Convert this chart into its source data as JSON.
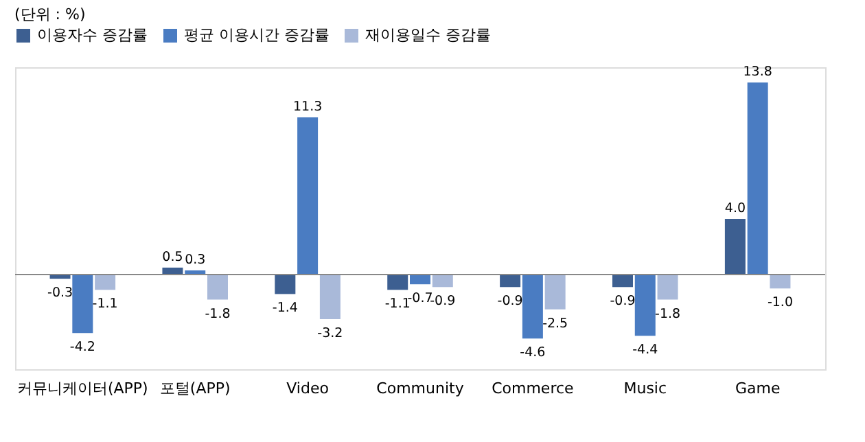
{
  "chart_data": {
    "type": "bar",
    "annotations": [
      "(단위 : %)"
    ],
    "categories": [
      "커뮤니케이터(APP)",
      "포털(APP)",
      "Video",
      "Community",
      "Commerce",
      "Music",
      "Game"
    ],
    "series": [
      {
        "name": "이용자수 증감률",
        "color": "#3d5f91",
        "values": [
          -0.3,
          0.5,
          -1.4,
          -1.1,
          -0.9,
          -0.9,
          4.0
        ],
        "value_labels": [
          "-0.3",
          "0.5",
          "-1.4",
          "-1.1",
          "-0.9",
          "-0.9",
          "4.0"
        ]
      },
      {
        "name": "평균 이용시간 증감률",
        "color": "#4a7cc2",
        "values": [
          -4.2,
          0.3,
          11.3,
          -0.7,
          -4.6,
          -4.4,
          13.8
        ],
        "value_labels": [
          "-4.2",
          "0.3",
          "11.3",
          "-0.7",
          "-4.6",
          "-4.4",
          "13.8"
        ]
      },
      {
        "name": "재이용일수 증감률",
        "color": "#a9b9d9",
        "values": [
          -1.1,
          -1.8,
          -3.2,
          -0.9,
          -2.5,
          -1.8,
          -1.0
        ],
        "value_labels": [
          "-1.1",
          "-1.8",
          "-3.2",
          "-0.9",
          "-2.5",
          "-1.8",
          "-1.0"
        ]
      }
    ],
    "legend": "top",
    "grid": false
  }
}
